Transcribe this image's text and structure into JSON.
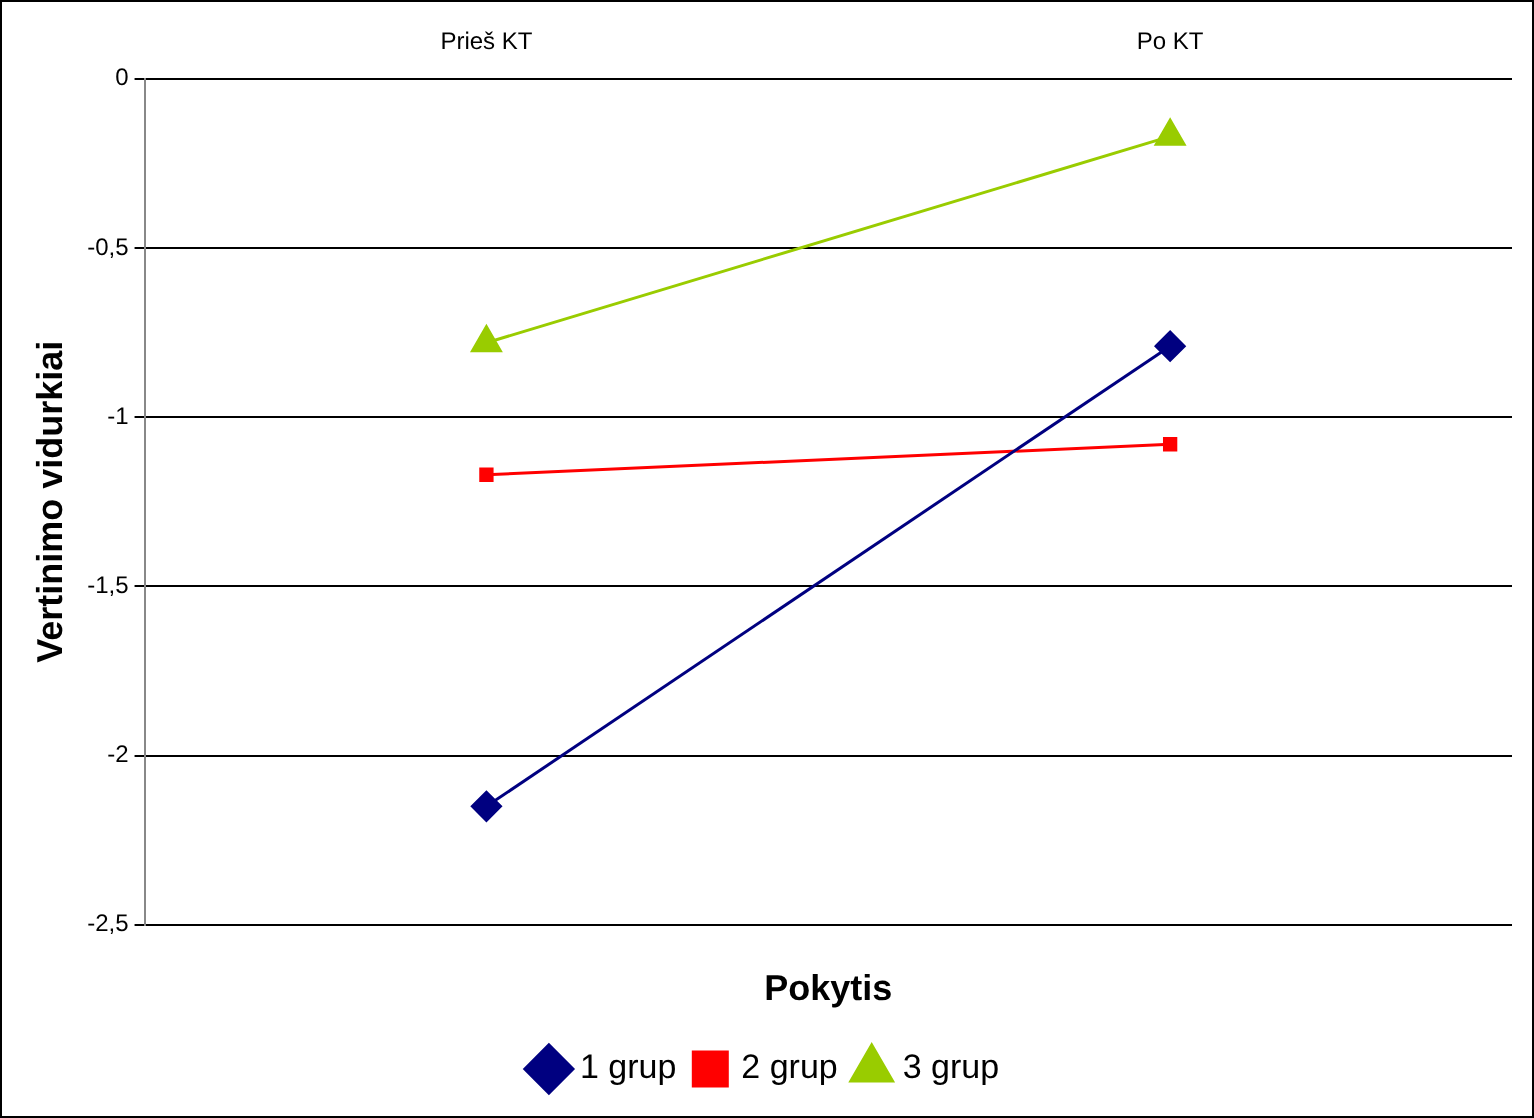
{
  "chart_data": {
    "type": "line",
    "xlabel": "Pokytis",
    "ylabel": "Vertinimo vidurkiai",
    "categories": [
      "Prieš KT",
      "Po KT"
    ],
    "series": [
      {
        "name": "1 grup",
        "color": "#000080",
        "marker": "diamond",
        "values": [
          -2.15,
          -0.79
        ]
      },
      {
        "name": "2 grup",
        "color": "#ff0000",
        "marker": "square",
        "values": [
          -1.17,
          -1.08
        ]
      },
      {
        "name": "3 grup",
        "color": "#99cc00",
        "marker": "triangle",
        "values": [
          -0.78,
          -0.17
        ]
      }
    ],
    "ylim": [
      -2.5,
      0
    ],
    "yticks": [
      {
        "value": -2.5,
        "label": "-2,5"
      },
      -2,
      {
        "value": -1.5,
        "label": "-1,5"
      },
      -1,
      {
        "value": -0.5,
        "label": "-0,5"
      },
      0
    ],
    "grid": "y",
    "legend": "bottom"
  }
}
